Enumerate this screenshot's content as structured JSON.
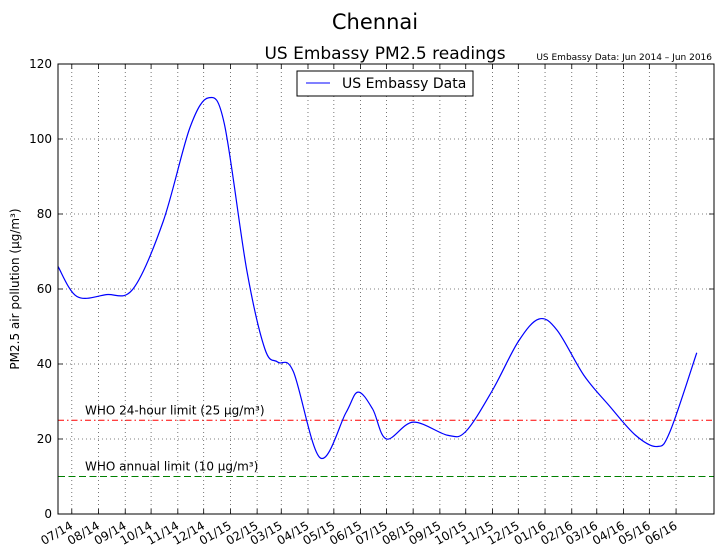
{
  "suptitle": "Chennai",
  "title": "US Embassy PM2.5 readings",
  "source_note": "US Embassy Data: Jun 2014 – Jun 2016",
  "colors": {
    "series": "#0000ff",
    "who_24h": "#ff0000",
    "who_annual": "#008000",
    "axes": "#000000",
    "grid": "#555555"
  },
  "chart_data": {
    "type": "line",
    "ylabel": "PM2.5 air pollution (µg/m³)",
    "xlabel": "",
    "ylim": [
      0,
      120
    ],
    "yticks": [
      0,
      20,
      40,
      60,
      80,
      100,
      120
    ],
    "xlim": [
      "2014-06-15",
      "2016-07-15"
    ],
    "xticks": [
      "07/14",
      "08/14",
      "09/14",
      "10/14",
      "11/14",
      "12/14",
      "01/15",
      "02/15",
      "03/15",
      "04/15",
      "05/15",
      "06/15",
      "07/15",
      "08/15",
      "09/15",
      "10/15",
      "11/15",
      "12/15",
      "01/16",
      "02/16",
      "03/16",
      "04/16",
      "05/16",
      "06/16"
    ],
    "grid": true,
    "legend_position": "top-center",
    "series": [
      {
        "name": "US Embassy Data",
        "x": [
          "2014-06-15",
          "2014-07-07",
          "2014-08-10",
          "2014-09-10",
          "2014-10-15",
          "2014-11-15",
          "2014-12-07",
          "2014-12-25",
          "2015-01-20",
          "2015-02-10",
          "2015-02-25",
          "2015-03-15",
          "2015-04-15",
          "2015-05-15",
          "2015-05-29",
          "2015-06-15",
          "2015-07-01",
          "2015-08-01",
          "2015-09-10",
          "2015-10-01",
          "2015-11-01",
          "2015-12-01",
          "2015-12-25",
          "2016-01-15",
          "2016-02-15",
          "2016-03-15",
          "2016-04-15",
          "2016-05-10",
          "2016-05-25",
          "2016-06-25"
        ],
        "y": [
          66,
          58,
          58.5,
          60,
          78,
          103,
          111,
          104,
          65,
          44,
          40.5,
          38,
          15,
          27,
          32.5,
          28,
          20,
          24.5,
          21,
          22,
          33,
          46,
          52,
          49,
          37,
          29,
          21,
          18,
          22,
          43
        ]
      }
    ],
    "reference_lines": [
      {
        "label": "WHO 24-hour limit (25 µg/m³)",
        "y": 25,
        "style": "dash-dot",
        "color": "#ff0000"
      },
      {
        "label": "WHO annual limit (10 µg/m³)",
        "y": 10,
        "style": "dashed",
        "color": "#008000"
      }
    ]
  }
}
